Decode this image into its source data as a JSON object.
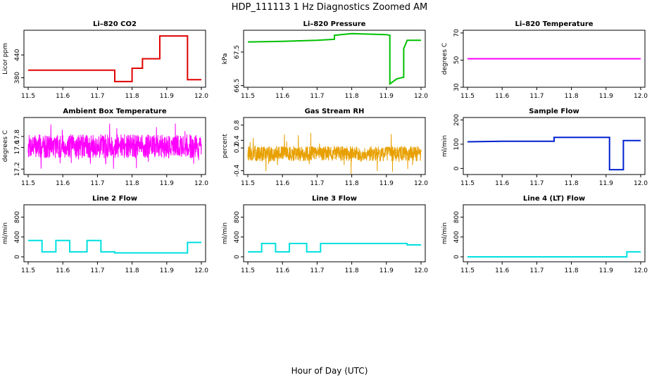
{
  "title": "HDP_111113  1 Hz Diagnostics Zoomed AM",
  "xlabel": "Hour of Day (UTC)",
  "chart_data": [
    {
      "type": "line",
      "title": "Li–820 CO2",
      "ylabel": "Licor ppm",
      "color": "#e00000",
      "xlim": [
        11.5,
        12.0
      ],
      "ylim": [
        355,
        505
      ],
      "xticks": [
        "11.5",
        "11.6",
        "11.7",
        "11.8",
        "11.9",
        "12.0"
      ],
      "yticks": [
        380,
        440
      ],
      "x": [
        11.5,
        11.75,
        11.75,
        11.8,
        11.8,
        11.83,
        11.83,
        11.88,
        11.88,
        11.96,
        11.96,
        12.0
      ],
      "y": [
        400,
        400,
        370,
        370,
        405,
        405,
        430,
        430,
        490,
        490,
        375,
        375
      ]
    },
    {
      "type": "line",
      "title": "Li–820 Pressure",
      "ylabel": "kPa",
      "color": "#00c000",
      "xlim": [
        11.5,
        12.0
      ],
      "ylim": [
        66.45,
        68.15
      ],
      "xticks": [
        "11.5",
        "11.6",
        "11.7",
        "11.8",
        "11.9",
        "12.0"
      ],
      "yticks": [
        66.5,
        67.5
      ],
      "x": [
        11.5,
        11.6,
        11.7,
        11.75,
        11.75,
        11.8,
        11.9,
        11.91,
        11.91,
        11.93,
        11.95,
        11.95,
        11.96,
        12.0
      ],
      "y": [
        67.8,
        67.82,
        67.85,
        67.88,
        68.0,
        68.05,
        68.02,
        68.0,
        66.55,
        66.7,
        66.75,
        67.6,
        67.85,
        67.85
      ]
    },
    {
      "type": "line",
      "title": "Li–820 Temperature",
      "ylabel": "degrees C",
      "color": "#ff00ff",
      "xlim": [
        11.5,
        12.0
      ],
      "ylim": [
        30,
        72
      ],
      "xticks": [
        "11.5",
        "11.6",
        "11.7",
        "11.8",
        "11.9",
        "12.0"
      ],
      "yticks": [
        30,
        50,
        70
      ],
      "x": [
        11.5,
        12.0
      ],
      "y": [
        51,
        51
      ]
    },
    {
      "type": "line",
      "title": "Ambient Box Temperature",
      "ylabel": "degrees C",
      "color": "#ff00ff",
      "xlim": [
        11.5,
        12.0
      ],
      "ylim": [
        17.1,
        18.15
      ],
      "xticks": [
        "11.5",
        "11.6",
        "11.7",
        "11.8",
        "11.9",
        "12.0"
      ],
      "yticks": [
        17.2,
        17.6,
        17.8
      ],
      "noise": {
        "center": 17.62,
        "amp": 0.22,
        "spike": 0.42,
        "n": 900,
        "seed": 7
      }
    },
    {
      "type": "line",
      "title": "Gas Stream RH",
      "ylabel": "percent",
      "color": "#e8a000",
      "xlim": [
        11.5,
        12.0
      ],
      "ylim": [
        -0.5,
        1.0
      ],
      "xticks": [
        "11.5",
        "11.6",
        "11.7",
        "11.8",
        "11.9",
        "12.0"
      ],
      "yticks": [
        -0.4,
        0.2,
        0.4,
        0.8
      ],
      "noise": {
        "center": 0.05,
        "amp": 0.2,
        "spike": 0.55,
        "n": 900,
        "seed": 13
      }
    },
    {
      "type": "line",
      "title": "Sample Flow",
      "ylabel": "ml/min",
      "color": "#0020d0",
      "xlim": [
        11.5,
        12.0
      ],
      "ylim": [
        -25,
        210
      ],
      "xticks": [
        "11.5",
        "11.6",
        "11.7",
        "11.8",
        "11.9",
        "12.0"
      ],
      "yticks": [
        0,
        100,
        200
      ],
      "x": [
        11.5,
        11.6,
        11.7,
        11.75,
        11.75,
        11.91,
        11.91,
        11.95,
        11.95,
        12.0
      ],
      "y": [
        110,
        112,
        112,
        112,
        128,
        128,
        -5,
        -5,
        115,
        115
      ]
    },
    {
      "type": "line",
      "title": "Line 2 Flow",
      "ylabel": "ml/min",
      "color": "#00e0e0",
      "xlim": [
        11.5,
        12.0
      ],
      "ylim": [
        -100,
        1050
      ],
      "xticks": [
        "11.5",
        "11.6",
        "11.7",
        "11.8",
        "11.9",
        "12.0"
      ],
      "yticks": [
        0,
        400,
        800
      ],
      "x": [
        11.5,
        11.54,
        11.54,
        11.58,
        11.58,
        11.62,
        11.62,
        11.67,
        11.67,
        11.71,
        11.71,
        11.75,
        11.75,
        11.96,
        11.96,
        12.0
      ],
      "y": [
        330,
        330,
        100,
        100,
        330,
        330,
        100,
        100,
        330,
        330,
        100,
        100,
        80,
        80,
        290,
        290
      ]
    },
    {
      "type": "line",
      "title": "Line 3 Flow",
      "ylabel": "ml/min",
      "color": "#00e0e0",
      "xlim": [
        11.5,
        12.0
      ],
      "ylim": [
        -100,
        1050
      ],
      "xticks": [
        "11.5",
        "11.6",
        "11.7",
        "11.8",
        "11.9",
        "12.0"
      ],
      "yticks": [
        0,
        400,
        800
      ],
      "x": [
        11.5,
        11.54,
        11.54,
        11.58,
        11.58,
        11.62,
        11.62,
        11.67,
        11.67,
        11.71,
        11.71,
        11.96,
        11.96,
        12.0
      ],
      "y": [
        100,
        100,
        270,
        270,
        100,
        100,
        270,
        270,
        100,
        100,
        270,
        270,
        240,
        240
      ]
    },
    {
      "type": "line",
      "title": "Line 4 (LT) Flow",
      "ylabel": "ml/min",
      "color": "#00e0e0",
      "xlim": [
        11.5,
        12.0
      ],
      "ylim": [
        -100,
        1050
      ],
      "xticks": [
        "11.5",
        "11.6",
        "11.7",
        "11.8",
        "11.9",
        "12.0"
      ],
      "yticks": [
        0,
        400,
        800
      ],
      "x": [
        11.5,
        11.96,
        11.96,
        12.0
      ],
      "y": [
        0,
        0,
        100,
        100
      ]
    }
  ]
}
